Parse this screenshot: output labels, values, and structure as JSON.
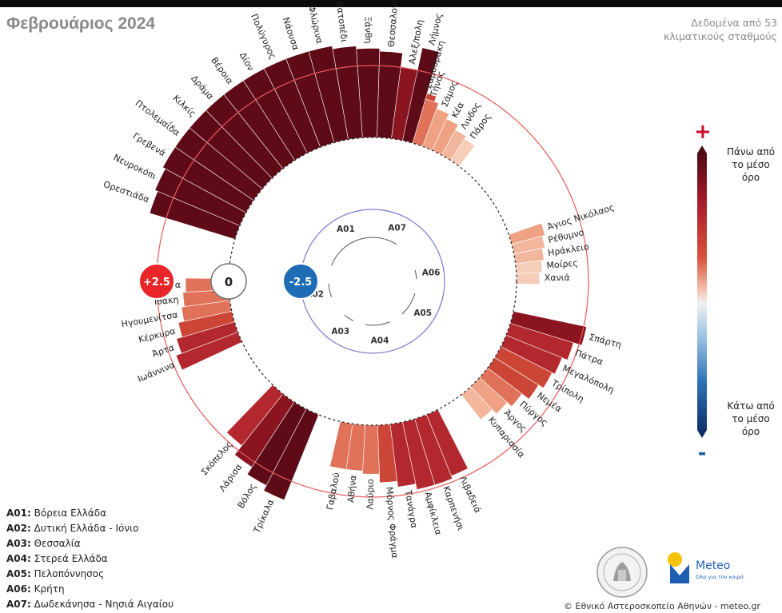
{
  "title": "Φεβρουάριος 2024",
  "source_line1": "Δεδομένα από 53",
  "source_line2": "κλιματικούς σταθμούς",
  "scale": {
    "plus_label": "+2.5",
    "zero_label": "0",
    "minus_label": "-2.5"
  },
  "colorbar": {
    "plus_sign": "+",
    "minus_sign": "-",
    "top_line1": "Πάνω από",
    "top_line2": "το μέσο",
    "top_line3": "όρο",
    "bottom_line1": "Κάτω από",
    "bottom_line2": "το μέσο",
    "bottom_line3": "όρο"
  },
  "regions": [
    {
      "code": "A01:",
      "name": "Βόρεια Ελλάδα"
    },
    {
      "code": "A02:",
      "name": "Δυτική Ελλάδα - Ιόνιο"
    },
    {
      "code": "A03:",
      "name": "Θεσσαλία"
    },
    {
      "code": "A04:",
      "name": "Στερεά Ελλάδα"
    },
    {
      "code": "A05:",
      "name": "Πελοπόννησος"
    },
    {
      "code": "A06:",
      "name": "Κρήτη"
    },
    {
      "code": "A07:",
      "name": "Δωδεκάνησα - Νησιά Αιγαίου"
    }
  ],
  "inner_labels": [
    "A01",
    "A07",
    "A06",
    "A05",
    "A04",
    "A03",
    "A02"
  ],
  "logo_meteo_text": "Meteo",
  "logo_meteo_sub": "Όλα για τον καιρό",
  "copyright": "© Εθνικό Αστεροσκοπείο Αθηνών - meteo.gr",
  "colors": {
    "dark": "#5e0b17",
    "mid": "#b3282e",
    "light": "#eea283",
    "pale": "#f6cdb9",
    "plus_circle": "#e8262a",
    "minus_circle": "#1e6db4",
    "ring": "#e85a5a",
    "inner_ring": "#7a7ad0"
  },
  "chart_data": {
    "type": "bar",
    "subtype": "radial",
    "axis": {
      "min": -2.5,
      "max": 2.5,
      "zero_ring": 0
    },
    "series": [
      {
        "name": "A01",
        "stations": [
          "Ορεστιάδα",
          "Νευροκόπι",
          "Γρεβενά",
          "Πτολεμαΐδα",
          "Κιλκίς",
          "Δράμα",
          "Βέροια",
          "Δίον",
          "Πολύγυρος",
          "Νάουσα",
          "Φλώρινα",
          "Βατοπέδι",
          "Ξάνθη",
          "Θεσσαλονίκη",
          "Αλεξ/πολη",
          "Σαμοθράκη"
        ],
        "values": [
          3.1,
          3.2,
          3.3,
          3.3,
          3.3,
          3.3,
          3.3,
          3.3,
          3.3,
          3.3,
          3.3,
          3.2,
          3.1,
          3.0,
          2.5,
          1.8
        ]
      },
      {
        "name": "A07",
        "stations": [
          "Λήμνος",
          "Τήνος",
          "Σάμος",
          "Κέα",
          "Λινδος",
          "Πάρος"
        ],
        "values": [
          3.3,
          1.6,
          1.4,
          1.2,
          1.0,
          0.9
        ]
      },
      {
        "name": "A06",
        "stations": [
          "Άγιος Νικόλαος",
          "Ρέθυμνο",
          "Ηράκλειο",
          "Μοίρες",
          "Χανιά"
        ],
        "values": [
          1.2,
          1.1,
          1.0,
          0.9,
          0.8
        ]
      },
      {
        "name": "A05",
        "stations": [
          "Σπάρτη",
          "Πάτρα",
          "Μεγαλόπολη",
          "Τρίπολη",
          "Νεμέα",
          "Πύργος",
          "Άργος",
          "Κυπαρισσία"
        ],
        "values": [
          2.6,
          2.3,
          2.1,
          2.0,
          1.8,
          1.5,
          1.3,
          1.1
        ]
      },
      {
        "name": "A04",
        "stations": [
          "Λιβαδειά",
          "Καρπενήσι",
          "Αμφίκλεια",
          "Τανάγρα",
          "Μόρνος Φράγμα",
          "Λαύριο",
          "Αθήνα",
          "Γαβαλού"
        ],
        "values": [
          2.3,
          2.4,
          2.4,
          2.2,
          2.0,
          1.7,
          1.6,
          1.6
        ]
      },
      {
        "name": "A03",
        "stations": [
          "Τρίκαλα",
          "Βόλος",
          "Λάρισα",
          "Σκόπελος"
        ],
        "values": [
          3.2,
          3.0,
          2.7,
          2.3
        ]
      },
      {
        "name": "A02",
        "stations": [
          "Ιωάννινα",
          "Άρτα",
          "Κέρκυρα",
          "Ηγουμενίτσα",
          "Ιθάκη",
          "Λευκάδα"
        ],
        "values": [
          2.3,
          2.1,
          1.9,
          1.7,
          1.6,
          1.5
        ]
      }
    ]
  }
}
